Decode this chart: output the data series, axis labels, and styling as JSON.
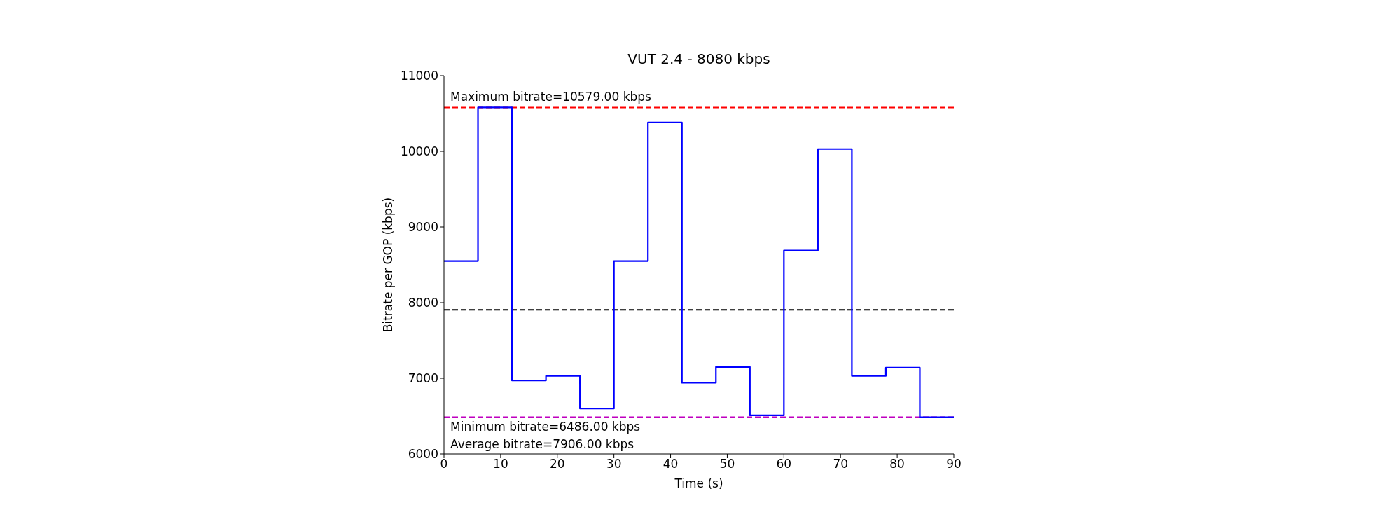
{
  "chart_data": {
    "type": "step",
    "title": "VUT 2.4 - 8080 kbps",
    "xlabel": "Time (s)",
    "ylabel": "Bitrate per GOP (kbps)",
    "x": [
      0,
      6,
      12,
      18,
      24,
      30,
      36,
      42,
      48,
      54,
      60,
      66,
      72,
      78,
      84,
      90
    ],
    "series": [
      {
        "color": "#0000ff",
        "values": [
          8550,
          10579,
          6970,
          7030,
          6600,
          8550,
          10380,
          6940,
          7150,
          6510,
          8690,
          10030,
          7030,
          7140,
          6486,
          6486
        ]
      }
    ],
    "xlim": [
      0,
      90
    ],
    "xticks": [
      0,
      10,
      20,
      30,
      40,
      50,
      60,
      70,
      80,
      90
    ],
    "ylim": [
      6000,
      11000
    ],
    "yticks": [
      6000,
      7000,
      8000,
      9000,
      10000,
      11000
    ],
    "ref_lines": [
      {
        "axis": "y",
        "value": 10579,
        "label": "Maximum bitrate=10579.00 kbps",
        "color": "#ff0000",
        "line_style": "dashed"
      },
      {
        "axis": "y",
        "value": 6486,
        "label": "Minimum bitrate=6486.00 kbps",
        "color": "#bf00bf",
        "line_style": "dashed"
      },
      {
        "axis": "y",
        "value": 7906,
        "label": "Average bitrate=7906.00 kbps",
        "color": "#000000",
        "line_style": "dashed"
      }
    ],
    "grid": false,
    "legend": false
  }
}
